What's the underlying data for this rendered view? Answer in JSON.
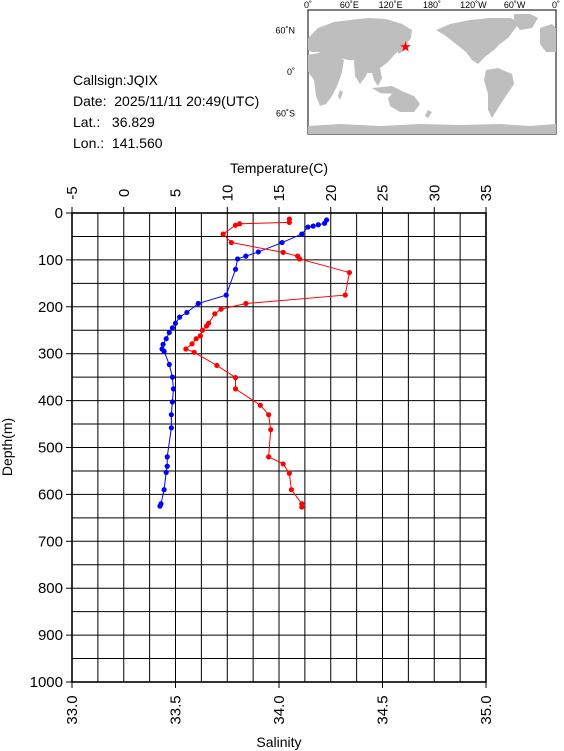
{
  "station": {
    "callsign_label": "Callsign:",
    "callsign": "JQIX",
    "date_label": "Date:",
    "date": "2025/11/11 20:49(UTC)",
    "lat_label": "Lat.:",
    "lat": "36.829",
    "lon_label": "Lon.:",
    "lon": "141.560"
  },
  "map": {
    "lon_ticks": [
      "0˚",
      "60˚E",
      "120˚E",
      "180˚",
      "120˚W",
      "60˚W",
      "0˚"
    ],
    "lat_ticks": [
      "60˚N",
      "0˚",
      "60˚S"
    ],
    "marker": {
      "lat": 36.829,
      "lon": 141.56,
      "symbol": "★",
      "color": "#ff0000"
    },
    "ocean_color": "#ffffff",
    "land_color": "#bebebe"
  },
  "chart_data": {
    "type": "line",
    "title": "",
    "xlabel_top": "Temperature(C)",
    "xlabel_bottom": "Salinity",
    "ylabel": "Depth(m)",
    "temperature_ticks": [
      "-5",
      "0",
      "5",
      "10",
      "15",
      "20",
      "25",
      "30",
      "35"
    ],
    "salinity_ticks": [
      "33.0",
      "33.5",
      "34.0",
      "34.5",
      "35.0"
    ],
    "depth_ticks": [
      "0",
      "100",
      "200",
      "300",
      "400",
      "500",
      "600",
      "700",
      "800",
      "900",
      "1000"
    ],
    "temperature_range": [
      -5,
      35
    ],
    "salinity_range": [
      33.0,
      35.0
    ],
    "depth_range": [
      0,
      1000
    ],
    "grid": true,
    "series": [
      {
        "color": "#0000ff",
        "axis": "temperature",
        "points": [
          [
            19.6,
            15
          ],
          [
            19.4,
            22
          ],
          [
            18.8,
            25
          ],
          [
            18.3,
            28
          ],
          [
            17.8,
            30
          ],
          [
            17.2,
            45
          ],
          [
            15.3,
            63
          ],
          [
            13.0,
            83
          ],
          [
            11.8,
            92
          ],
          [
            11.0,
            98
          ],
          [
            10.8,
            120
          ],
          [
            9.9,
            175
          ],
          [
            7.2,
            193
          ],
          [
            6.1,
            212
          ],
          [
            5.4,
            222
          ],
          [
            5.0,
            235
          ],
          [
            4.7,
            245
          ],
          [
            4.4,
            255
          ],
          [
            4.1,
            268
          ],
          [
            3.8,
            280
          ],
          [
            3.7,
            290
          ],
          [
            3.9,
            295
          ],
          [
            4.4,
            323
          ],
          [
            4.7,
            350
          ],
          [
            4.8,
            375
          ],
          [
            4.7,
            403
          ],
          [
            4.6,
            430
          ],
          [
            4.6,
            458
          ],
          [
            4.2,
            520
          ],
          [
            4.2,
            540
          ],
          [
            4.1,
            553
          ],
          [
            3.9,
            590
          ],
          [
            3.6,
            620
          ],
          [
            3.5,
            625
          ]
        ]
      },
      {
        "color": "#ff0000",
        "axis": "salinity",
        "points": [
          [
            34.05,
            13
          ],
          [
            34.05,
            20
          ],
          [
            33.81,
            23
          ],
          [
            33.79,
            26
          ],
          [
            33.73,
            45
          ],
          [
            33.77,
            63
          ],
          [
            34.02,
            84
          ],
          [
            34.09,
            92
          ],
          [
            34.1,
            98
          ],
          [
            34.34,
            127
          ],
          [
            34.32,
            175
          ],
          [
            33.84,
            193
          ],
          [
            33.72,
            205
          ],
          [
            33.69,
            215
          ],
          [
            33.66,
            235
          ],
          [
            33.65,
            241
          ],
          [
            33.63,
            250
          ],
          [
            33.62,
            262
          ],
          [
            33.6,
            268
          ],
          [
            33.58,
            279
          ],
          [
            33.55,
            290
          ],
          [
            33.59,
            297
          ],
          [
            33.7,
            325
          ],
          [
            33.79,
            351
          ],
          [
            33.79,
            375
          ],
          [
            33.91,
            410
          ],
          [
            33.95,
            430
          ],
          [
            33.96,
            462
          ],
          [
            33.95,
            520
          ],
          [
            34.02,
            535
          ],
          [
            34.05,
            555
          ],
          [
            34.06,
            590
          ],
          [
            34.11,
            620
          ],
          [
            34.11,
            627
          ]
        ]
      }
    ]
  }
}
